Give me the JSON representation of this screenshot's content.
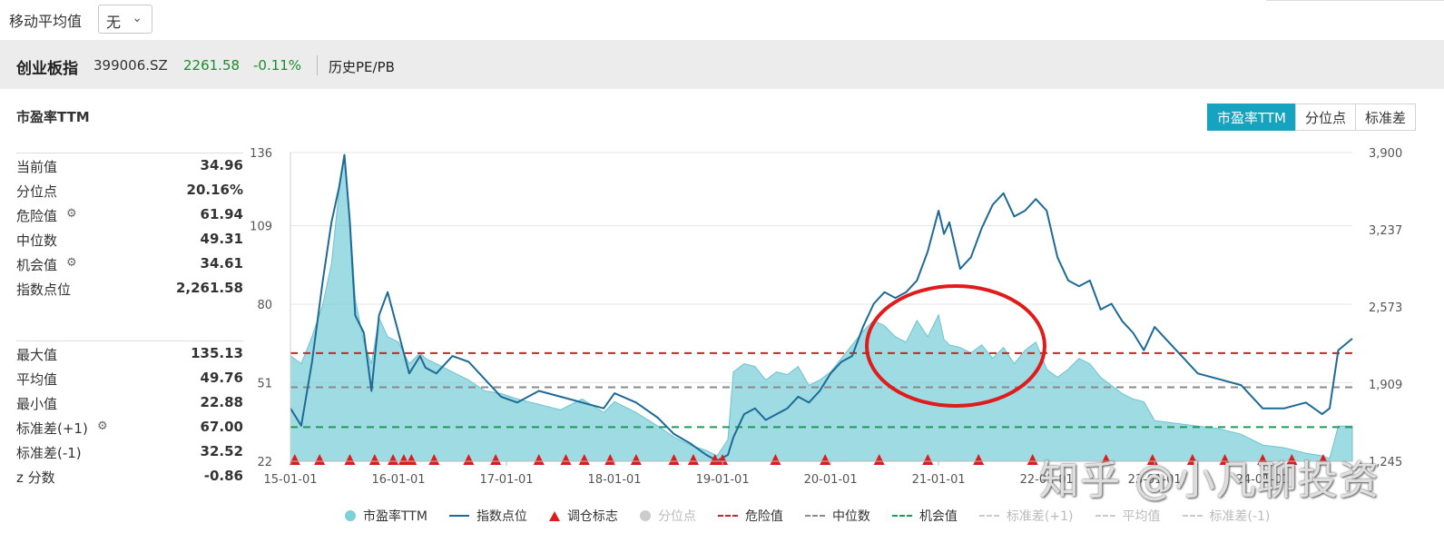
{
  "toolbar": {
    "ma_label": "移动平均值",
    "ma_value": "无"
  },
  "header": {
    "name": "创业板指",
    "code": "399006.SZ",
    "price": "2261.58",
    "change": "-0.11%",
    "link": "历史PE/PB"
  },
  "panel": {
    "title": "市盈率TTM",
    "tabs": [
      "市盈率TTM",
      "分位点",
      "标准差"
    ],
    "active_tab": "市盈率TTM"
  },
  "stats_top": [
    {
      "label": "当前值",
      "value": "34.96",
      "gear": false
    },
    {
      "label": "分位点",
      "value": "20.16%",
      "gear": false
    },
    {
      "label": "危险值",
      "value": "61.94",
      "gear": true
    },
    {
      "label": "中位数",
      "value": "49.31",
      "gear": false
    },
    {
      "label": "机会值",
      "value": "34.61",
      "gear": true
    },
    {
      "label": "指数点位",
      "value": "2,261.58",
      "gear": false
    }
  ],
  "stats_bottom": [
    {
      "label": "最大值",
      "value": "135.13",
      "gear": false
    },
    {
      "label": "平均值",
      "value": "49.76",
      "gear": false
    },
    {
      "label": "最小值",
      "value": "22.88",
      "gear": false
    },
    {
      "label": "标准差(+1)",
      "value": "67.00",
      "gear": true
    },
    {
      "label": "标准差(-1)",
      "value": "32.52",
      "gear": false
    },
    {
      "label": "z 分数",
      "value": "-0.86",
      "gear": false
    }
  ],
  "legend": [
    {
      "label": "市盈率TTM",
      "symbol": "dot",
      "color": "#7ecfd9",
      "dim": false
    },
    {
      "label": "指数点位",
      "symbol": "line",
      "color": "#1d6a96",
      "dim": false
    },
    {
      "label": "调仓标志",
      "symbol": "triangle",
      "color": "#e01b1b",
      "dim": false
    },
    {
      "label": "分位点",
      "symbol": "dot",
      "color": "#cccccc",
      "dim": true
    },
    {
      "label": "危险值",
      "symbol": "dashed",
      "color": "#c0282e",
      "dim": false
    },
    {
      "label": "中位数",
      "symbol": "dashed",
      "color": "#8a8a8a",
      "dim": false
    },
    {
      "label": "机会值",
      "symbol": "dashed",
      "color": "#1e9a5a",
      "dim": false
    },
    {
      "label": "标准差(+1)",
      "symbol": "dashdot",
      "color": "#cccccc",
      "dim": true
    },
    {
      "label": "平均值",
      "symbol": "dashdot",
      "color": "#cccccc",
      "dim": true
    },
    {
      "label": "标准差(-1)",
      "symbol": "dashdot",
      "color": "#cccccc",
      "dim": true
    }
  ],
  "watermark": "知乎 @小凡聊投资",
  "chart_data": {
    "type": "area",
    "x_tick_labels": [
      "15-01-01",
      "16-01-01",
      "17-01-01",
      "18-01-01",
      "19-01-01",
      "20-01-01",
      "21-01-01",
      "22-01-01",
      "23-01-01",
      "24-01-01"
    ],
    "y_left": {
      "ticks": [
        22,
        51,
        80,
        109,
        136
      ],
      "range": [
        22,
        136
      ]
    },
    "y_right": {
      "ticks": [
        "1,245",
        "1,909",
        "2,573",
        "3,237",
        "3,900"
      ],
      "range": [
        1245,
        3900
      ]
    },
    "x_range": [
      2015.0,
      2024.83
    ],
    "grid": true,
    "reference_lines": [
      {
        "name": "危险值",
        "value": 61.94,
        "color": "#c0282e"
      },
      {
        "name": "中位数",
        "value": 49.31,
        "color": "#8a8a8a"
      },
      {
        "name": "机会值",
        "value": 34.61,
        "color": "#1e9a5a"
      }
    ],
    "series": [
      {
        "name": "市盈率TTM",
        "axis": "left",
        "style": "area",
        "color": "#7ecfd9",
        "x": [
          2015.0,
          2015.1,
          2015.2,
          2015.3,
          2015.38,
          2015.45,
          2015.5,
          2015.55,
          2015.6,
          2015.68,
          2015.75,
          2015.82,
          2015.9,
          2016.0,
          2016.1,
          2016.2,
          2016.25,
          2016.35,
          2016.5,
          2016.65,
          2016.8,
          2016.95,
          2017.1,
          2017.3,
          2017.5,
          2017.7,
          2017.9,
          2018.0,
          2018.2,
          2018.4,
          2018.55,
          2018.7,
          2018.85,
          2018.95,
          2019.05,
          2019.1,
          2019.2,
          2019.3,
          2019.4,
          2019.5,
          2019.6,
          2019.7,
          2019.8,
          2019.9,
          2020.0,
          2020.1,
          2020.2,
          2020.3,
          2020.4,
          2020.5,
          2020.6,
          2020.7,
          2020.8,
          2020.9,
          2021.0,
          2021.05,
          2021.1,
          2021.2,
          2021.3,
          2021.4,
          2021.5,
          2021.6,
          2021.7,
          2021.8,
          2021.9,
          2022.0,
          2022.1,
          2022.2,
          2022.3,
          2022.4,
          2022.5,
          2022.6,
          2022.7,
          2022.8,
          2022.9,
          2023.0,
          2023.2,
          2023.4,
          2023.6,
          2023.8,
          2024.0,
          2024.2,
          2024.4,
          2024.55,
          2024.62,
          2024.7,
          2024.83
        ],
        "values": [
          61,
          58,
          68,
          80,
          95,
          122,
          135,
          112,
          82,
          66,
          58,
          75,
          68,
          66,
          58,
          62,
          60,
          58,
          55,
          52,
          48,
          47,
          45,
          43,
          41,
          45,
          40,
          44,
          40,
          35,
          31,
          28,
          26,
          24,
          30,
          55,
          58,
          57,
          52,
          55,
          54,
          57,
          50,
          52,
          55,
          60,
          65,
          70,
          74,
          72,
          68,
          66,
          74,
          68,
          76,
          67,
          65,
          64,
          62,
          65,
          60,
          64,
          58,
          63,
          66,
          56,
          53,
          56,
          60,
          58,
          53,
          50,
          47,
          45,
          44,
          37,
          36,
          35,
          34,
          32,
          28,
          27,
          25,
          24,
          23,
          35,
          35
        ]
      },
      {
        "name": "指数点位",
        "axis": "right",
        "style": "line",
        "color": "#1d6a96",
        "x": [
          2015.0,
          2015.1,
          2015.2,
          2015.3,
          2015.38,
          2015.45,
          2015.5,
          2015.55,
          2015.6,
          2015.68,
          2015.75,
          2015.82,
          2015.9,
          2016.0,
          2016.1,
          2016.2,
          2016.25,
          2016.35,
          2016.5,
          2016.65,
          2016.8,
          2016.95,
          2017.1,
          2017.3,
          2017.5,
          2017.7,
          2017.9,
          2018.0,
          2018.2,
          2018.4,
          2018.55,
          2018.7,
          2018.85,
          2018.95,
          2019.05,
          2019.1,
          2019.2,
          2019.3,
          2019.4,
          2019.5,
          2019.6,
          2019.7,
          2019.8,
          2019.9,
          2020.0,
          2020.1,
          2020.2,
          2020.3,
          2020.4,
          2020.5,
          2020.6,
          2020.7,
          2020.8,
          2020.9,
          2021.0,
          2021.05,
          2021.1,
          2021.2,
          2021.3,
          2021.4,
          2021.5,
          2021.6,
          2021.7,
          2021.8,
          2021.9,
          2022.0,
          2022.1,
          2022.2,
          2022.3,
          2022.4,
          2022.5,
          2022.6,
          2022.7,
          2022.8,
          2022.9,
          2023.0,
          2023.2,
          2023.4,
          2023.6,
          2023.8,
          2024.0,
          2024.2,
          2024.4,
          2024.55,
          2024.62,
          2024.7,
          2024.83
        ],
        "values": [
          1700,
          1550,
          2100,
          2800,
          3300,
          3600,
          3880,
          3300,
          2500,
          2350,
          1850,
          2500,
          2700,
          2350,
          2000,
          2150,
          2050,
          2000,
          2150,
          2100,
          1950,
          1800,
          1750,
          1850,
          1800,
          1750,
          1700,
          1830,
          1750,
          1620,
          1480,
          1400,
          1300,
          1250,
          1300,
          1450,
          1650,
          1700,
          1600,
          1650,
          1700,
          1800,
          1750,
          1850,
          2000,
          2100,
          2150,
          2400,
          2600,
          2700,
          2650,
          2700,
          2800,
          3050,
          3400,
          3200,
          3300,
          2900,
          3000,
          3250,
          3450,
          3550,
          3350,
          3400,
          3500,
          3400,
          3000,
          2800,
          2750,
          2800,
          2550,
          2600,
          2450,
          2350,
          2200,
          2400,
          2200,
          2000,
          1950,
          1900,
          1700,
          1700,
          1750,
          1650,
          1700,
          2200,
          2300
        ]
      },
      {
        "name": "调仓标志",
        "axis": "left",
        "style": "marker",
        "x": [
          2015.04,
          2015.27,
          2015.55,
          2015.78,
          2015.95,
          2016.05,
          2016.12,
          2016.33,
          2016.65,
          2016.9,
          2017.3,
          2017.55,
          2017.72,
          2017.96,
          2018.2,
          2018.55,
          2018.73,
          2018.93,
          2019.0,
          2019.49,
          2019.95,
          2020.45,
          2020.9,
          2021.37,
          2021.87,
          2022.55,
          2022.98,
          2023.35,
          2023.65,
          2024.0,
          2024.27,
          2024.56
        ]
      }
    ]
  }
}
